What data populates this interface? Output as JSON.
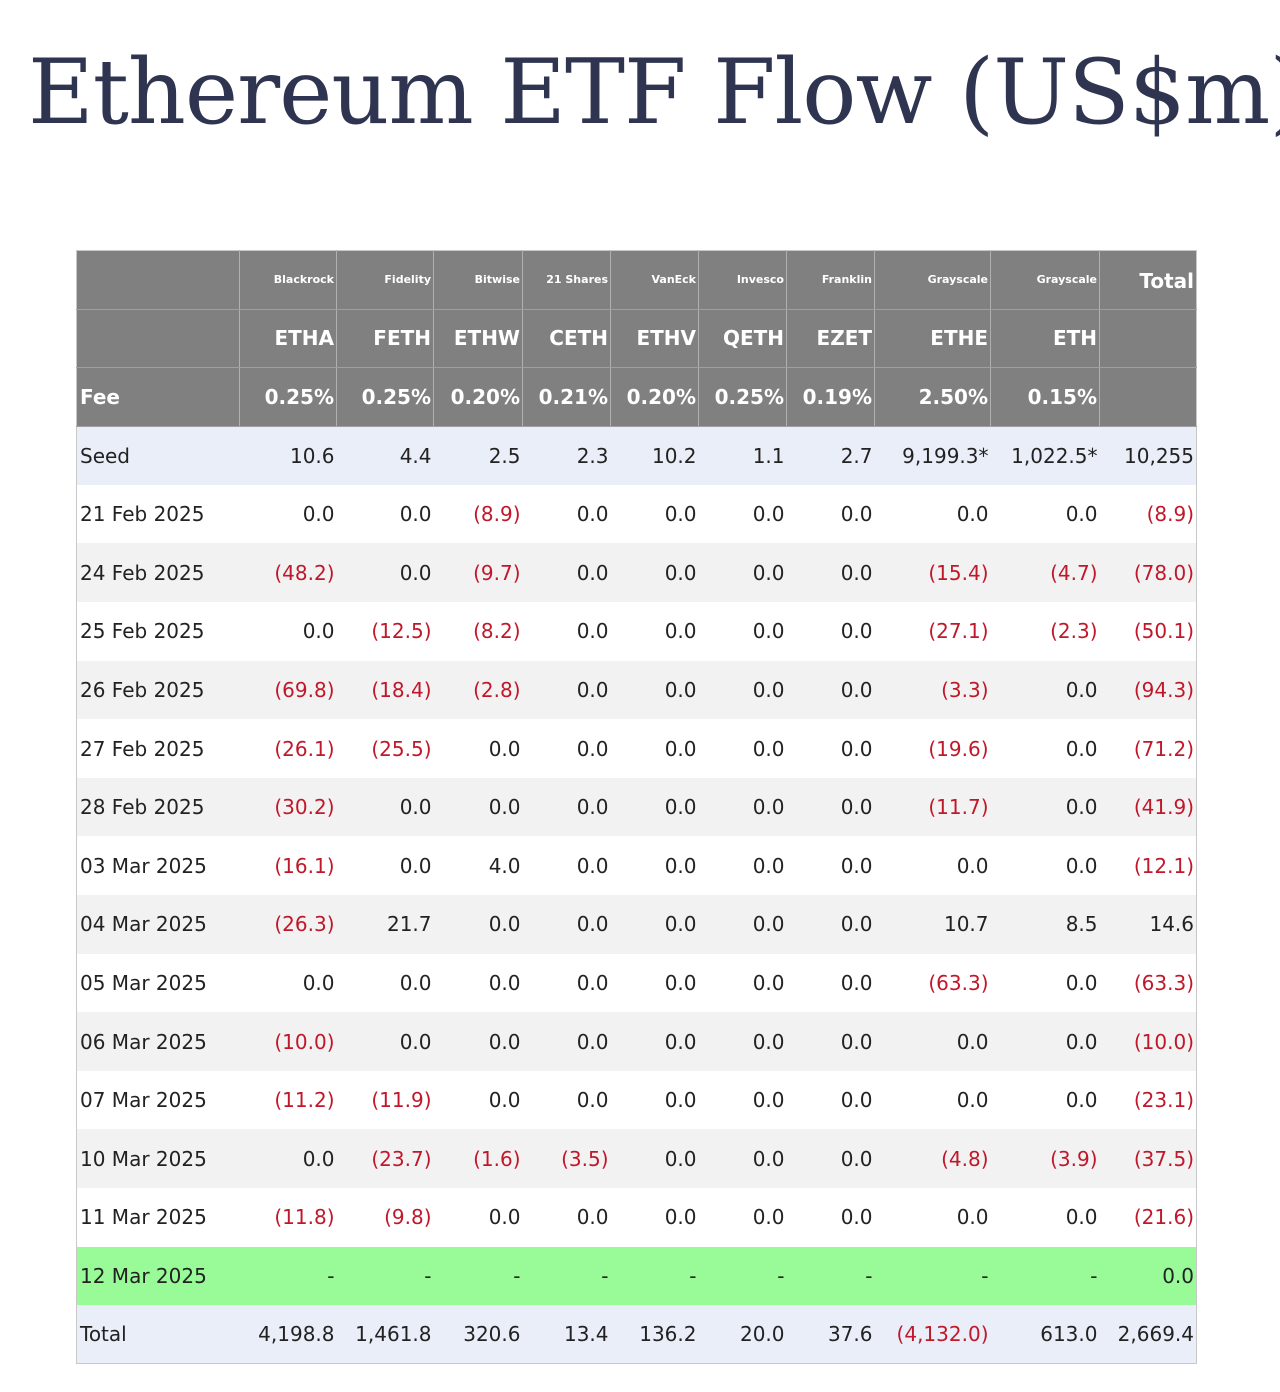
{
  "title": "Ethereum ETF Flow (US$m)",
  "table": {
    "issuers": [
      "Blackrock",
      "Fidelity",
      "Bitwise",
      "21 Shares",
      "VanEck",
      "Invesco",
      "Franklin",
      "Grayscale",
      "Grayscale"
    ],
    "total_label": "Total",
    "tickers": [
      "ETHA",
      "FETH",
      "ETHW",
      "CETH",
      "ETHV",
      "QETH",
      "EZET",
      "ETHE",
      "ETH"
    ],
    "fee_label": "Fee",
    "fees": [
      "0.25%",
      "0.25%",
      "0.20%",
      "0.21%",
      "0.20%",
      "0.25%",
      "0.19%",
      "2.50%",
      "0.15%"
    ],
    "rows": [
      [
        "Seed",
        "10.6",
        "4.4",
        "2.5",
        "2.3",
        "10.2",
        "1.1",
        "2.7",
        "9,199.3*",
        "1,022.5*",
        "10,255"
      ],
      [
        "21 Feb 2025",
        "0.0",
        "0.0",
        "(8.9)",
        "0.0",
        "0.0",
        "0.0",
        "0.0",
        "0.0",
        "0.0",
        "(8.9)"
      ],
      [
        "24 Feb 2025",
        "(48.2)",
        "0.0",
        "(9.7)",
        "0.0",
        "0.0",
        "0.0",
        "0.0",
        "(15.4)",
        "(4.7)",
        "(78.0)"
      ],
      [
        "25 Feb 2025",
        "0.0",
        "(12.5)",
        "(8.2)",
        "0.0",
        "0.0",
        "0.0",
        "0.0",
        "(27.1)",
        "(2.3)",
        "(50.1)"
      ],
      [
        "26 Feb 2025",
        "(69.8)",
        "(18.4)",
        "(2.8)",
        "0.0",
        "0.0",
        "0.0",
        "0.0",
        "(3.3)",
        "0.0",
        "(94.3)"
      ],
      [
        "27 Feb 2025",
        "(26.1)",
        "(25.5)",
        "0.0",
        "0.0",
        "0.0",
        "0.0",
        "0.0",
        "(19.6)",
        "0.0",
        "(71.2)"
      ],
      [
        "28 Feb 2025",
        "(30.2)",
        "0.0",
        "0.0",
        "0.0",
        "0.0",
        "0.0",
        "0.0",
        "(11.7)",
        "0.0",
        "(41.9)"
      ],
      [
        "03 Mar 2025",
        "(16.1)",
        "0.0",
        "4.0",
        "0.0",
        "0.0",
        "0.0",
        "0.0",
        "0.0",
        "0.0",
        "(12.1)"
      ],
      [
        "04 Mar 2025",
        "(26.3)",
        "21.7",
        "0.0",
        "0.0",
        "0.0",
        "0.0",
        "0.0",
        "10.7",
        "8.5",
        "14.6"
      ],
      [
        "05 Mar 2025",
        "0.0",
        "0.0",
        "0.0",
        "0.0",
        "0.0",
        "0.0",
        "0.0",
        "(63.3)",
        "0.0",
        "(63.3)"
      ],
      [
        "06 Mar 2025",
        "(10.0)",
        "0.0",
        "0.0",
        "0.0",
        "0.0",
        "0.0",
        "0.0",
        "0.0",
        "0.0",
        "(10.0)"
      ],
      [
        "07 Mar 2025",
        "(11.2)",
        "(11.9)",
        "0.0",
        "0.0",
        "0.0",
        "0.0",
        "0.0",
        "0.0",
        "0.0",
        "(23.1)"
      ],
      [
        "10 Mar 2025",
        "0.0",
        "(23.7)",
        "(1.6)",
        "(3.5)",
        "0.0",
        "0.0",
        "0.0",
        "(4.8)",
        "(3.9)",
        "(37.5)"
      ],
      [
        "11 Mar 2025",
        "(11.8)",
        "(9.8)",
        "0.0",
        "0.0",
        "0.0",
        "0.0",
        "0.0",
        "0.0",
        "0.0",
        "(21.6)"
      ],
      [
        "12 Mar 2025",
        "-",
        "-",
        "-",
        "-",
        "-",
        "-",
        "-",
        "-",
        "-",
        "0.0"
      ],
      [
        "Total",
        "4,198.8",
        "1,461.8",
        "320.6",
        "13.4",
        "136.2",
        "20.0",
        "37.6",
        "(4,132.0)",
        "613.0",
        "2,669.4"
      ]
    ]
  }
}
